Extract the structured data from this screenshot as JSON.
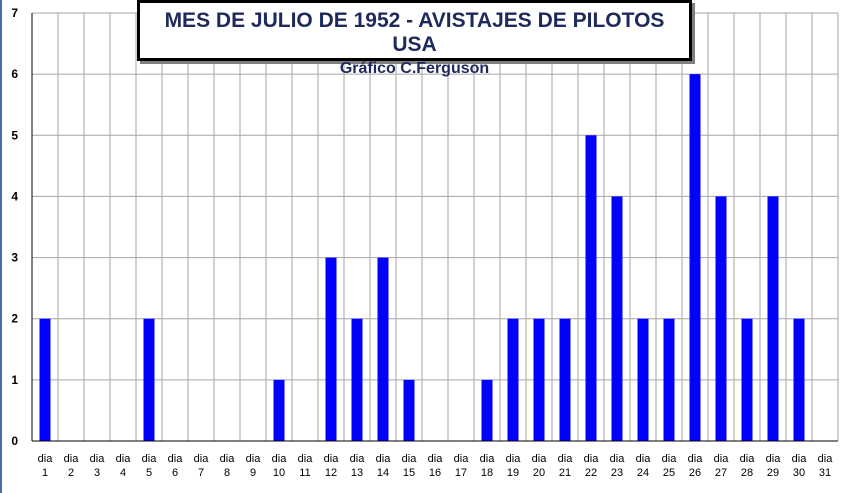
{
  "chart_data": {
    "type": "bar",
    "title": "MES DE JULIO DE 1952 - AVISTAJES DE PILOTOS USA",
    "subtitle": "Gráfico C.Ferguson",
    "xlabel": "",
    "ylabel": "",
    "ylim": [
      0,
      7
    ],
    "yticks": [
      "0",
      "1",
      "2",
      "3",
      "4",
      "5",
      "6",
      "7"
    ],
    "grid": true,
    "legend": "none",
    "categories": [
      "dia 1",
      "dia 2",
      "dia 3",
      "dia 4",
      "dia 5",
      "dia 6",
      "dia 7",
      "dia 8",
      "dia 9",
      "dia 10",
      "dia 11",
      "dia 12",
      "dia 13",
      "dia 14",
      "dia 15",
      "dia 16",
      "dia 17",
      "dia 18",
      "dia 19",
      "dia 20",
      "dia 21",
      "dia 22",
      "dia 23",
      "dia 24",
      "dia 25",
      "dia 26",
      "dia 27",
      "dia 28",
      "dia 29",
      "dia 30",
      "dia 31"
    ],
    "values": [
      2,
      0,
      0,
      0,
      2,
      0,
      0,
      0,
      0,
      1,
      0,
      3,
      2,
      3,
      1,
      0,
      0,
      1,
      2,
      2,
      2,
      5,
      4,
      2,
      2,
      6,
      4,
      2,
      4,
      2,
      0
    ],
    "bar_color": "#0000ff",
    "grid_color": "#a6a6a6",
    "axis_color": "#000000"
  }
}
